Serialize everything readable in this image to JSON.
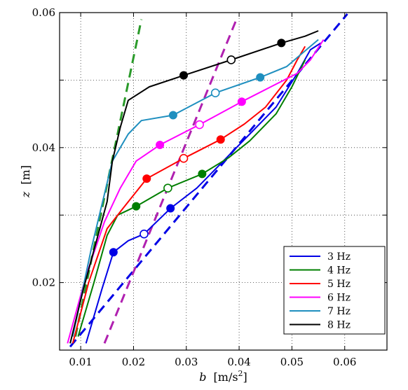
{
  "chart_data": {
    "type": "line",
    "title": "",
    "xlabel_var": "b",
    "xlabel_unit": "[m/s",
    "xlabel_exp": "2",
    "xlabel_close": "]",
    "ylabel_var": "z",
    "ylabel_unit": "[m]",
    "xlim": [
      0.006,
      0.068
    ],
    "ylim": [
      0.01,
      0.06
    ],
    "xticks": [
      0.01,
      0.02,
      0.03,
      0.04,
      0.05,
      0.06
    ],
    "xtick_labels": [
      "0.01",
      "0.02",
      "0.03",
      "0.04",
      "0.05",
      "0.06"
    ],
    "yticks": [
      0.02,
      0.04,
      0.06
    ],
    "ytick_labels": [
      "0.02",
      "0.04",
      "0.06"
    ],
    "ygrid": [
      0.02,
      0.03,
      0.04,
      0.05,
      0.06
    ],
    "grid": true,
    "legend_position": "bottom-right",
    "series": [
      {
        "name": "3 Hz",
        "color": "#0000e6",
        "x": [
          0.011,
          0.014,
          0.0162,
          0.019,
          0.022,
          0.027,
          0.032,
          0.037,
          0.042,
          0.047,
          0.051,
          0.0535,
          0.0555
        ],
        "y": [
          0.011,
          0.019,
          0.0245,
          0.0262,
          0.0272,
          0.031,
          0.034,
          0.038,
          0.042,
          0.046,
          0.051,
          0.0545,
          0.0555
        ],
        "markers_filled": [
          [
            0.0162,
            0.0245
          ],
          [
            0.027,
            0.031
          ]
        ],
        "markers_open": [
          [
            0.022,
            0.0272
          ]
        ],
        "fit": [
          [
            0.008,
            0.0105
          ],
          [
            0.0605,
            0.0598
          ]
        ]
      },
      {
        "name": "4 Hz",
        "color": "#007f00",
        "x": [
          0.0095,
          0.0125,
          0.015,
          0.017,
          0.0205,
          0.0265,
          0.033,
          0.038,
          0.042,
          0.047,
          0.05,
          0.0525
        ],
        "y": [
          0.012,
          0.02,
          0.027,
          0.03,
          0.0313,
          0.034,
          0.0361,
          0.0385,
          0.041,
          0.045,
          0.049,
          0.053
        ],
        "markers_filled": [
          [
            0.0205,
            0.0313
          ],
          [
            0.033,
            0.0361
          ]
        ],
        "markers_open": [
          [
            0.0265,
            0.034
          ]
        ],
        "fit": [
          [
            0.009,
            0.012
          ],
          [
            0.0215,
            0.059
          ]
        ]
      },
      {
        "name": "5 Hz",
        "color": "#ff0000",
        "x": [
          0.0085,
          0.0115,
          0.015,
          0.018,
          0.0225,
          0.0295,
          0.0365,
          0.041,
          0.045,
          0.049,
          0.051,
          0.0525
        ],
        "y": [
          0.011,
          0.02,
          0.028,
          0.031,
          0.0354,
          0.0384,
          0.0412,
          0.0435,
          0.046,
          0.05,
          0.053,
          0.055
        ],
        "markers_filled": [
          [
            0.0225,
            0.0354
          ],
          [
            0.0365,
            0.0412
          ]
        ],
        "markers_open": [
          [
            0.0295,
            0.0384
          ]
        ],
        "fit": null
      },
      {
        "name": "6 Hz",
        "color": "#ff00ff",
        "x": [
          0.0075,
          0.011,
          0.0145,
          0.0175,
          0.0205,
          0.025,
          0.0325,
          0.0405,
          0.046,
          0.051,
          0.0535,
          0.056
        ],
        "y": [
          0.011,
          0.021,
          0.029,
          0.034,
          0.038,
          0.0404,
          0.0434,
          0.0468,
          0.049,
          0.051,
          0.053,
          0.056
        ],
        "markers_filled": [
          [
            0.025,
            0.0404
          ],
          [
            0.0405,
            0.0468
          ]
        ],
        "markers_open": [
          [
            0.0325,
            0.0434
          ]
        ],
        "fit": [
          [
            0.0145,
            0.011
          ],
          [
            0.0395,
            0.059
          ]
        ]
      },
      {
        "name": "7 Hz",
        "color": "#1f8fbf",
        "x": [
          0.0085,
          0.012,
          0.016,
          0.0175,
          0.019,
          0.0215,
          0.0275,
          0.0355,
          0.044,
          0.049,
          0.052,
          0.055
        ],
        "y": [
          0.012,
          0.025,
          0.038,
          0.04,
          0.042,
          0.044,
          0.0448,
          0.0481,
          0.0504,
          0.052,
          0.054,
          0.056
        ],
        "markers_filled": [
          [
            0.0275,
            0.0448
          ],
          [
            0.044,
            0.0504
          ]
        ],
        "markers_open": [
          [
            0.0355,
            0.0481
          ]
        ],
        "fit": null
      },
      {
        "name": "8 Hz",
        "color": "#000000",
        "x": [
          0.008,
          0.0105,
          0.015,
          0.016,
          0.0175,
          0.019,
          0.023,
          0.0295,
          0.0385,
          0.048,
          0.0525,
          0.055
        ],
        "y": [
          0.011,
          0.019,
          0.032,
          0.038,
          0.043,
          0.047,
          0.049,
          0.0507,
          0.053,
          0.0555,
          0.0565,
          0.0573
        ],
        "markers_filled": [
          [
            0.0295,
            0.0507
          ],
          [
            0.048,
            0.0555
          ]
        ],
        "markers_open": [
          [
            0.0385,
            0.053
          ]
        ],
        "fit": null
      }
    ]
  }
}
